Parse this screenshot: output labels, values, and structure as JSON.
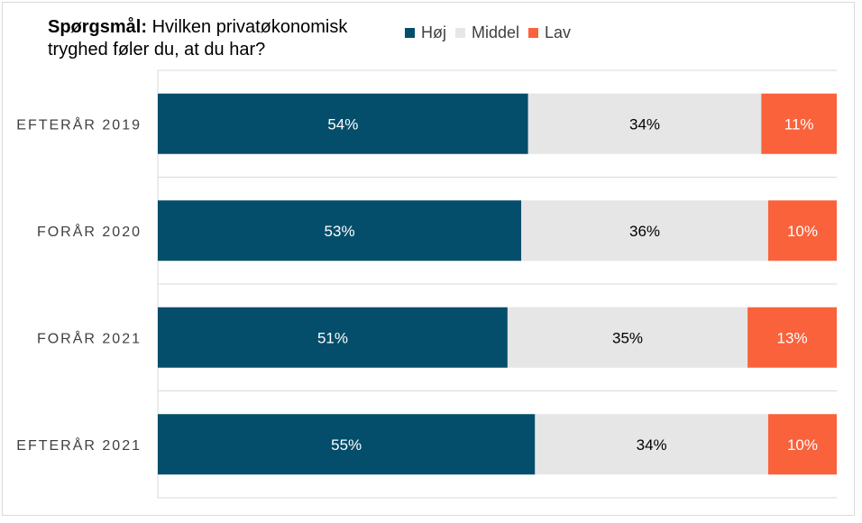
{
  "question": {
    "prefix": "Spørgsmål:",
    "text": " Hvilken privatøkonomisk tryghed føler du, at du har?"
  },
  "legend": [
    {
      "name": "Høj",
      "color": "#054e6b"
    },
    {
      "name": "Middel",
      "color": "#e6e6e6"
    },
    {
      "name": "Lav",
      "color": "#f9623b"
    }
  ],
  "chart_data": {
    "type": "bar",
    "orientation": "horizontal",
    "stacked": true,
    "percent": true,
    "categories": [
      "EFTERÅR 2019",
      "FORÅR 2020",
      "FORÅR 2021",
      "EFTERÅR 2021"
    ],
    "series": [
      {
        "name": "Høj",
        "values": [
          54,
          53,
          51,
          55
        ],
        "labels": [
          "54%",
          "53%",
          "51%",
          "55%"
        ],
        "color": "#054e6b",
        "label_color": "#ffffff"
      },
      {
        "name": "Middel",
        "values": [
          34,
          36,
          35,
          34
        ],
        "labels": [
          "34%",
          "36%",
          "35%",
          "34%"
        ],
        "color": "#e6e6e6",
        "label_color": "#000000"
      },
      {
        "name": "Lav",
        "values": [
          11,
          10,
          13,
          10
        ],
        "labels": [
          "11%",
          "10%",
          "13%",
          "10%"
        ],
        "color": "#f9623b",
        "label_color": "#ffffff"
      }
    ],
    "gridlines": true,
    "legend_position": "top"
  }
}
